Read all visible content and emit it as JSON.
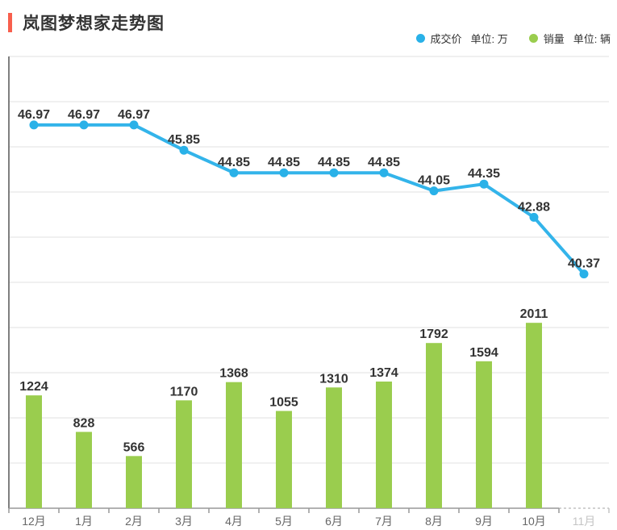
{
  "page": {
    "title": "岚图梦想家走势图"
  },
  "legend": [
    {
      "name": "成交价",
      "unit": "单位: 万",
      "color": "#29b1e8"
    },
    {
      "name": "销量",
      "unit": "单位: 辆",
      "color": "#9acd4e"
    }
  ],
  "colors": {
    "accent": "#f85f4d",
    "line": "#33b4ea",
    "marker": "#29b1e8",
    "bar": "#9acd4e",
    "value_label": "#333333",
    "axis": "#999999",
    "y_axis_line": "#555555",
    "grid": "#e2e2e2",
    "month_label": "#666666",
    "muted_label": "#c4c4c4"
  },
  "chart_data": {
    "type": "combo",
    "title": "岚图梦想家走势图",
    "grid": true,
    "legend_position": "top-right",
    "categories": [
      "12月",
      "1月",
      "2月",
      "3月",
      "4月",
      "5月",
      "6月",
      "7月",
      "8月",
      "9月",
      "10月",
      "11月"
    ],
    "last_category_faded": true,
    "series": [
      {
        "name": "成交价",
        "type": "line",
        "unit": "万",
        "color": "#29b1e8",
        "values": [
          46.97,
          46.97,
          46.97,
          45.85,
          44.85,
          44.85,
          44.85,
          44.85,
          44.05,
          44.35,
          42.88,
          40.37
        ],
        "y_axis": {
          "min": 30,
          "max": 50,
          "grid_step": 2,
          "labels_visible": false
        }
      },
      {
        "name": "销量",
        "type": "bar",
        "unit": "辆",
        "color": "#9acd4e",
        "values": [
          1224,
          828,
          566,
          1170,
          1368,
          1055,
          1310,
          1374,
          1792,
          1594,
          2011,
          null
        ],
        "y_axis": {
          "min": 0,
          "max": 4900,
          "labels_visible": false
        }
      }
    ]
  }
}
